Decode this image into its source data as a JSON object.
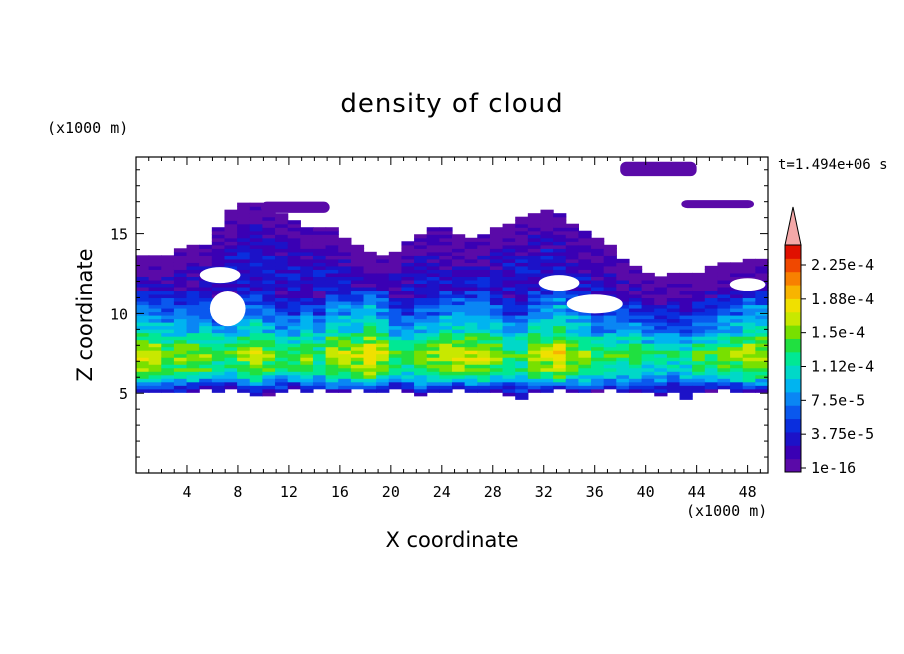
{
  "chart_data": {
    "type": "heatmap",
    "title": "density of cloud",
    "xlabel": "X coordinate",
    "ylabel": "Z coordinate",
    "x_unit": "(x1000 m)",
    "y_unit": "(x1000 m)",
    "time_label": "t=1.494e+06 s",
    "xlim": [
      0,
      49.6
    ],
    "ylim": [
      0,
      19.8
    ],
    "x_ticks": [
      "4",
      "8",
      "12",
      "16",
      "20",
      "24",
      "28",
      "32",
      "36",
      "40",
      "44",
      "48"
    ],
    "y_ticks": [
      "5",
      "10",
      "15"
    ],
    "colorbar": {
      "labels": [
        "2.25e-4",
        "1.88e-4",
        "1.5e-4",
        "1.12e-4",
        "7.5e-5",
        "3.75e-5",
        "1e-16"
      ],
      "colors": [
        "#5a0aa8",
        "#3a00b4",
        "#1c12c8",
        "#0a2ede",
        "#0a58ee",
        "#0a86f4",
        "#00b4f0",
        "#00d8c8",
        "#00e894",
        "#20e040",
        "#78e000",
        "#c8e800",
        "#f0e000",
        "#f8b400",
        "#f88000",
        "#f04800",
        "#e01000"
      ],
      "extend_color": "#f4a8a8"
    },
    "field_description_levels": {
      "cloud_top_km": [
        13.6,
        13.6,
        13.7,
        14.0,
        14.3,
        14.4,
        15.4,
        16.5,
        16.9,
        16.9,
        16.6,
        16.3,
        15.8,
        15.4,
        15.3,
        15.3,
        14.7,
        14.2,
        13.9,
        13.7,
        13.9,
        14.5,
        15.0,
        15.4,
        15.3,
        15.0,
        14.8,
        15.0,
        15.4,
        15.7,
        16.0,
        16.3,
        16.6,
        16.3,
        15.6,
        15.1,
        14.7,
        14.2,
        13.5,
        12.9,
        12.5,
        12.4,
        12.5,
        12.5,
        12.6,
        12.9,
        13.1,
        13.3,
        13.4,
        13.5
      ],
      "cloud_base_km": [
        5.0,
        5.0,
        5.1,
        5.0,
        5.1,
        5.2,
        5.1,
        5.2,
        5.0,
        4.8,
        4.9,
        5.1,
        5.2,
        5.1,
        5.2,
        5.0,
        5.1,
        5.2,
        5.0,
        5.1,
        5.2,
        5.1,
        4.8,
        5.0,
        5.1,
        5.2,
        5.1,
        5.0,
        5.1,
        4.9,
        4.6,
        5.0,
        5.1,
        5.2,
        5.1,
        5.0,
        5.1,
        5.2,
        5.0,
        5.1,
        5.0,
        4.9,
        5.1,
        4.7,
        5.0,
        5.1,
        5.2,
        5.1,
        5.0,
        5.1
      ],
      "peak_level_index": [
        11,
        11,
        10,
        10,
        10,
        10,
        9,
        9,
        10,
        11,
        10,
        9,
        9,
        10,
        9,
        11,
        11,
        11,
        12,
        11,
        9,
        9,
        10,
        10,
        11,
        11,
        11,
        11,
        10,
        9,
        9,
        11,
        11,
        12,
        11,
        10,
        9,
        9,
        9,
        9,
        8,
        8,
        8,
        8,
        9,
        9,
        10,
        10,
        11,
        11
      ]
    },
    "cloud_top_cap": [
      {
        "x0": 9.8,
        "x1": 15.2,
        "z0": 16.3,
        "z1": 17.0
      },
      {
        "x0": 38.0,
        "x1": 44.0,
        "z0": 18.6,
        "z1": 19.5
      },
      {
        "x0": 42.8,
        "x1": 48.5,
        "z0": 16.6,
        "z1": 17.1
      }
    ],
    "clear_holes": [
      {
        "x": 7.2,
        "z": 10.3,
        "rx": 1.4,
        "rz": 1.1
      },
      {
        "x": 6.6,
        "z": 12.4,
        "rx": 1.6,
        "rz": 0.5
      },
      {
        "x": 36.0,
        "z": 10.6,
        "rx": 2.2,
        "rz": 0.6
      },
      {
        "x": 33.2,
        "z": 11.9,
        "rx": 1.6,
        "rz": 0.5
      },
      {
        "x": 48.0,
        "z": 11.8,
        "rx": 1.4,
        "rz": 0.4
      }
    ]
  }
}
